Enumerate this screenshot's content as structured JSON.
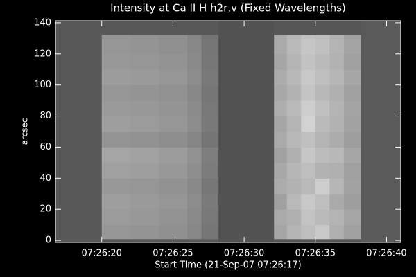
{
  "chart_data": {
    "type": "heatmap",
    "title": "Intensity at Ca II H h2r,v (Fixed Wavelengths)",
    "x_label": "Start Time (21-Sep-07 07:26:17)",
    "y_label": "arcsec",
    "xlim": [
      -0.25,
      24
    ],
    "ylim": [
      -1.3,
      141.3
    ],
    "xticks": [
      {
        "value": 3,
        "label": "07:26:20"
      },
      {
        "value": 8,
        "label": "07:26:25"
      },
      {
        "value": 13,
        "label": "07:26:30"
      },
      {
        "value": 18,
        "label": "07:26:35"
      },
      {
        "value": 23,
        "label": "07:26:40"
      }
    ],
    "yticks": [
      0,
      20,
      40,
      60,
      80,
      100,
      120,
      140
    ],
    "colormap": "gray",
    "zlim": [
      0,
      255
    ],
    "x_edges": [
      -0.25,
      3,
      5,
      7,
      9,
      10,
      11.2,
      15.1,
      16,
      17,
      18,
      19,
      20,
      21.2,
      24
    ],
    "y_edges": [
      -1.3,
      1,
      10,
      20,
      30,
      40,
      50,
      60,
      70,
      80,
      90,
      100,
      110,
      120,
      130,
      132.4,
      141.3
    ],
    "z": [
      [
        88,
        88,
        88,
        88,
        88,
        88,
        82,
        86,
        86,
        86,
        86,
        86,
        86,
        90
      ],
      [
        88,
        150,
        148,
        144,
        135,
        118,
        82,
        165,
        180,
        190,
        200,
        175,
        160,
        90
      ],
      [
        88,
        155,
        152,
        147,
        138,
        120,
        82,
        170,
        175,
        195,
        185,
        180,
        165,
        90
      ],
      [
        88,
        158,
        154,
        150,
        140,
        122,
        82,
        160,
        185,
        200,
        190,
        170,
        158,
        90
      ],
      [
        88,
        152,
        150,
        146,
        137,
        119,
        82,
        172,
        178,
        185,
        205,
        182,
        162,
        90
      ],
      [
        88,
        160,
        158,
        152,
        142,
        124,
        82,
        168,
        182,
        190,
        178,
        176,
        160,
        90
      ],
      [
        88,
        165,
        162,
        156,
        146,
        126,
        82,
        162,
        176,
        198,
        188,
        184,
        166,
        90
      ],
      [
        88,
        148,
        146,
        142,
        134,
        117,
        82,
        170,
        184,
        192,
        180,
        172,
        158,
        90
      ],
      [
        88,
        158,
        155,
        150,
        141,
        121,
        82,
        166,
        180,
        210,
        186,
        178,
        162,
        90
      ],
      [
        88,
        154,
        152,
        148,
        139,
        120,
        82,
        174,
        186,
        205,
        192,
        180,
        164,
        90
      ],
      [
        88,
        150,
        148,
        145,
        136,
        118,
        82,
        168,
        178,
        196,
        184,
        176,
        160,
        90
      ],
      [
        88,
        156,
        154,
        150,
        140,
        121,
        82,
        172,
        184,
        200,
        190,
        182,
        166,
        90
      ],
      [
        88,
        152,
        150,
        147,
        138,
        119,
        82,
        166,
        180,
        194,
        186,
        178,
        160,
        90
      ],
      [
        88,
        150,
        148,
        144,
        136,
        118,
        82,
        170,
        186,
        198,
        192,
        180,
        164,
        90
      ],
      [
        88,
        148,
        146,
        142,
        134,
        116,
        82,
        168,
        182,
        192,
        188,
        176,
        160,
        90
      ],
      [
        88,
        88,
        88,
        88,
        88,
        88,
        82,
        86,
        86,
        86,
        86,
        86,
        86,
        90
      ]
    ]
  }
}
